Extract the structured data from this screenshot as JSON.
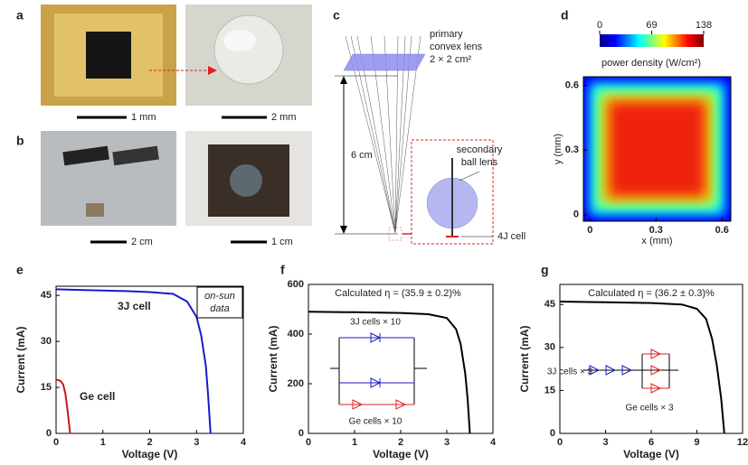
{
  "panels": {
    "a": {
      "label": "a",
      "scale_bars": [
        "1 mm",
        "2 mm"
      ]
    },
    "b": {
      "label": "b",
      "scale_bars": [
        "2 cm",
        "1 cm"
      ]
    },
    "c": {
      "label": "c",
      "lens_label": [
        "primary",
        "convex lens",
        "2 × 2 cm²"
      ],
      "distance": "6 cm",
      "ball_label": [
        "secondary",
        "ball lens"
      ],
      "cell_label": "4J cell"
    }
  },
  "chart_data": [
    {
      "type": "heatmap",
      "panel": "d",
      "colorbar_label": "power density (W/cm²)",
      "clim": [
        0,
        138
      ],
      "cticks": [
        0,
        69,
        138
      ],
      "xlabel": "x (mm)",
      "ylabel": "y (mm)",
      "xlim": [
        -0.03,
        0.64
      ],
      "xticks": [
        0,
        0.3,
        0.6
      ],
      "ylim": [
        -0.03,
        0.64
      ],
      "yticks": [
        0,
        0.3,
        0.6
      ]
    },
    {
      "type": "line",
      "panel": "e",
      "xlabel": "Voltage (V)",
      "ylabel": "Current (mA)",
      "xlim": [
        0,
        4
      ],
      "xticks": [
        0,
        1,
        2,
        3,
        4
      ],
      "ylim": [
        0,
        48
      ],
      "yticks": [
        0,
        15,
        30,
        45
      ],
      "annotation": [
        "on-sun",
        "data"
      ],
      "series": [
        {
          "name": "3J cell",
          "color": "#1a1ac8",
          "x": [
            0,
            0.5,
            1,
            1.5,
            2,
            2.5,
            2.8,
            3.0,
            3.1,
            3.2,
            3.25,
            3.3
          ],
          "values": [
            47,
            46.8,
            46.6,
            46.4,
            46.1,
            45.5,
            43,
            38,
            32,
            22,
            12,
            0
          ]
        },
        {
          "name": "Ge cell",
          "color": "#c81a1a",
          "x": [
            0,
            0.05,
            0.1,
            0.15,
            0.2,
            0.25,
            0.3
          ],
          "values": [
            17.5,
            17.4,
            17,
            16,
            13,
            7,
            0
          ]
        }
      ]
    },
    {
      "type": "line",
      "panel": "f",
      "xlabel": "Voltage (V)",
      "ylabel": "Current (mA)",
      "xlim": [
        0,
        4
      ],
      "xticks": [
        0,
        1,
        2,
        3,
        4
      ],
      "ylim": [
        0,
        600
      ],
      "yticks": [
        0,
        200,
        400,
        600
      ],
      "efficiency": "Calculated η = (35.9 ± 0.2)%",
      "circuit_labels": [
        "3J cells × 10",
        "Ge cells × 10"
      ],
      "series": [
        {
          "color": "#000000",
          "x": [
            0,
            1,
            2,
            2.6,
            3.0,
            3.2,
            3.3,
            3.4,
            3.45,
            3.5
          ],
          "values": [
            490,
            488,
            485,
            480,
            465,
            420,
            360,
            240,
            140,
            0
          ]
        }
      ]
    },
    {
      "type": "line",
      "panel": "g",
      "xlabel": "Voltage (V)",
      "ylabel": "Current (mA)",
      "xlim": [
        0,
        12
      ],
      "xticks": [
        0,
        3,
        6,
        9,
        12
      ],
      "ylim": [
        0,
        52
      ],
      "yticks": [
        0,
        15,
        30,
        45
      ],
      "efficiency": "Calculated η = (36.2 ± 0.3)%",
      "circuit_labels": [
        "3J cells × 3",
        "Ge cells × 3"
      ],
      "series": [
        {
          "color": "#000000",
          "x": [
            0,
            3,
            6,
            8,
            9,
            9.6,
            10,
            10.3,
            10.6,
            10.8
          ],
          "values": [
            46,
            45.8,
            45.5,
            45,
            43.5,
            40,
            33,
            24,
            12,
            0
          ]
        }
      ]
    }
  ]
}
